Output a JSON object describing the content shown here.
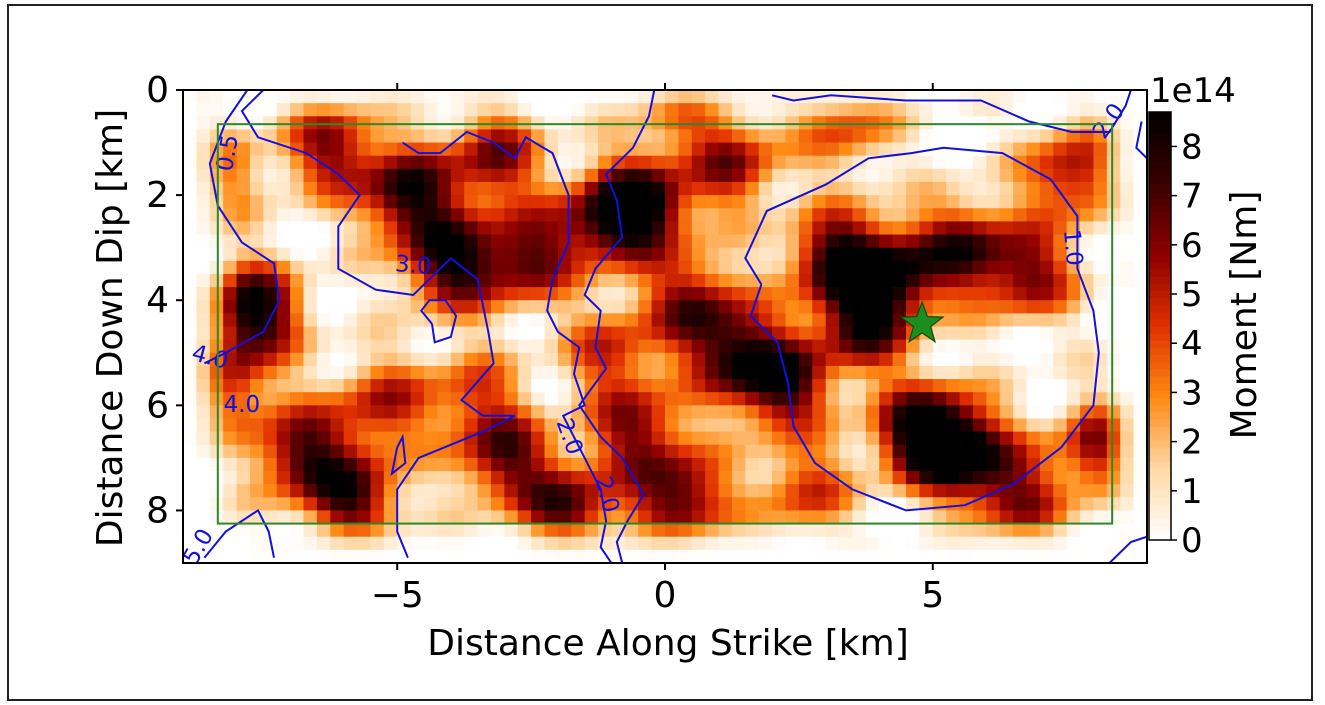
{
  "chart_data": {
    "type": "heatmap",
    "title": "",
    "xlabel": "Distance Along Strike [km]",
    "ylabel": "Distance Down Dip [km]",
    "xlim": [
      -9,
      9
    ],
    "ylim": [
      9,
      0
    ],
    "x_ticks": [
      -5,
      0,
      5
    ],
    "x_tick_labels": [
      "−5",
      "0",
      "5"
    ],
    "y_ticks": [
      0,
      2,
      4,
      6,
      8
    ],
    "y_tick_labels": [
      "0",
      "2",
      "4",
      "6",
      "8"
    ],
    "grid": false,
    "colorbar": {
      "label": "Moment [Nm]",
      "multiplier_label": "1e14",
      "min": 0,
      "max": 8.7,
      "ticks": [
        0,
        1,
        2,
        3,
        4,
        5,
        6,
        7,
        8
      ],
      "tick_labels": [
        "0",
        "1",
        "2",
        "3",
        "4",
        "5",
        "6",
        "7",
        "8"
      ],
      "colormap": "gist_heat_r",
      "colors": [
        "#ffffff",
        "#ffd8a6",
        "#ff8a14",
        "#e03000",
        "#8e0000",
        "#3a0000",
        "#000000"
      ]
    },
    "grid_resolution_km": 0.25,
    "moment_hotspots": [
      {
        "x": -7.7,
        "y": 4.2,
        "value": 9.0
      },
      {
        "x": -6.2,
        "y": 1.1,
        "value": 6.0
      },
      {
        "x": -4.8,
        "y": 2.0,
        "value": 8.0
      },
      {
        "x": -4.0,
        "y": 3.3,
        "value": 8.0
      },
      {
        "x": -3.2,
        "y": 1.3,
        "value": 6.0
      },
      {
        "x": -2.6,
        "y": 3.2,
        "value": 6.5
      },
      {
        "x": -1.2,
        "y": 2.5,
        "value": 6.0
      },
      {
        "x": -0.4,
        "y": 2.2,
        "value": 8.5
      },
      {
        "x": 0.5,
        "y": 4.0,
        "value": 6.0
      },
      {
        "x": 1.3,
        "y": 1.4,
        "value": 5.5
      },
      {
        "x": 1.3,
        "y": 5.0,
        "value": 7.0
      },
      {
        "x": 2.2,
        "y": 5.6,
        "value": 7.5
      },
      {
        "x": 3.2,
        "y": 3.2,
        "value": 8.0
      },
      {
        "x": 3.7,
        "y": 4.5,
        "value": 7.0
      },
      {
        "x": 4.3,
        "y": 3.5,
        "value": 7.0
      },
      {
        "x": 4.8,
        "y": 6.5,
        "value": 9.0
      },
      {
        "x": 5.6,
        "y": 6.9,
        "value": 8.0
      },
      {
        "x": 5.6,
        "y": 3.0,
        "value": 6.5
      },
      {
        "x": 6.8,
        "y": 3.5,
        "value": 6.0
      },
      {
        "x": 7.6,
        "y": 1.6,
        "value": 6.0
      },
      {
        "x": 8.2,
        "y": 6.8,
        "value": 6.5
      },
      {
        "x": 6.6,
        "y": 7.8,
        "value": 5.5
      },
      {
        "x": -6.8,
        "y": 6.9,
        "value": 7.0
      },
      {
        "x": -5.8,
        "y": 7.8,
        "value": 7.0
      },
      {
        "x": -5.3,
        "y": 6.0,
        "value": 5.0
      },
      {
        "x": -3.0,
        "y": 7.0,
        "value": 6.5
      },
      {
        "x": -1.8,
        "y": 8.0,
        "value": 7.0
      },
      {
        "x": -0.5,
        "y": 6.5,
        "value": 6.0
      },
      {
        "x": 0.3,
        "y": 7.8,
        "value": 7.5
      },
      {
        "x": -1.0,
        "y": 5.0,
        "value": 4.5
      },
      {
        "x": -3.6,
        "y": 5.8,
        "value": 4.0
      },
      {
        "x": -8.2,
        "y": 5.6,
        "value": 5.0
      },
      {
        "x": -8.3,
        "y": 1.6,
        "value": 3.5
      },
      {
        "x": 2.6,
        "y": 7.6,
        "value": 4.5
      },
      {
        "x": 3.4,
        "y": 0.7,
        "value": 4.0
      },
      {
        "x": 0.2,
        "y": 0.4,
        "value": 3.0
      }
    ],
    "rupture_contours": [
      {
        "label": "0.5",
        "points": [
          [
            -7.8,
            0.0
          ],
          [
            -8.2,
            0.6
          ],
          [
            -8.5,
            1.4
          ],
          [
            -8.35,
            2.2
          ],
          [
            -7.9,
            2.9
          ],
          [
            -7.3,
            3.3
          ],
          [
            -7.2,
            4.0
          ],
          [
            -7.5,
            4.6
          ],
          [
            -8.2,
            5.0
          ],
          [
            -8.6,
            5.2
          ]
        ]
      },
      {
        "label": "3.0",
        "points": [
          [
            -7.5,
            0.0
          ],
          [
            -7.9,
            0.4
          ],
          [
            -7.6,
            0.9
          ],
          [
            -6.7,
            1.2
          ],
          [
            -6.1,
            1.6
          ],
          [
            -5.7,
            2.0
          ],
          [
            -6.1,
            2.6
          ],
          [
            -6.1,
            3.4
          ],
          [
            -5.4,
            3.8
          ],
          [
            -4.7,
            3.9
          ],
          [
            -4.0,
            3.2
          ],
          [
            -3.5,
            3.6
          ],
          [
            -3.3,
            4.6
          ],
          [
            -3.2,
            5.2
          ],
          [
            -3.8,
            5.9
          ],
          [
            -3.4,
            6.2
          ],
          [
            -2.8,
            6.2
          ],
          [
            -3.4,
            6.5
          ],
          [
            -4.6,
            7.0
          ],
          [
            -5.0,
            7.6
          ],
          [
            -5.0,
            8.4
          ],
          [
            -4.8,
            8.9
          ]
        ]
      },
      {
        "label": "",
        "points": [
          [
            -4.9,
            1.0
          ],
          [
            -4.6,
            1.2
          ],
          [
            -4.2,
            1.2
          ],
          [
            -3.7,
            0.8
          ],
          [
            -3.2,
            1.0
          ],
          [
            -2.8,
            1.3
          ],
          [
            -2.6,
            0.9
          ],
          [
            -2.1,
            1.2
          ],
          [
            -1.8,
            2.0
          ],
          [
            -1.8,
            2.9
          ],
          [
            -2.1,
            3.6
          ],
          [
            -2.2,
            4.2
          ],
          [
            -2.0,
            4.6
          ],
          [
            -1.6,
            4.9
          ],
          [
            -1.7,
            5.4
          ],
          [
            -1.5,
            6.0
          ],
          [
            -1.9,
            6.2
          ],
          [
            -1.6,
            6.8
          ],
          [
            -1.2,
            7.6
          ],
          [
            -1.1,
            8.2
          ],
          [
            -1.2,
            8.7
          ],
          [
            -1.0,
            9.0
          ]
        ]
      },
      {
        "label": "2.0",
        "points": [
          [
            -0.2,
            0.0
          ],
          [
            -0.3,
            0.5
          ],
          [
            -0.6,
            1.1
          ],
          [
            -1.1,
            1.6
          ],
          [
            -0.9,
            2.1
          ],
          [
            -0.8,
            2.8
          ],
          [
            -1.3,
            3.4
          ],
          [
            -1.5,
            3.9
          ],
          [
            -1.2,
            4.2
          ],
          [
            -1.3,
            4.9
          ],
          [
            -1.1,
            5.3
          ],
          [
            -1.6,
            6.0
          ],
          [
            -1.2,
            6.6
          ],
          [
            -0.8,
            7.0
          ],
          [
            -0.4,
            7.7
          ],
          [
            -0.7,
            8.2
          ],
          [
            -0.9,
            8.6
          ],
          [
            -0.8,
            9.0
          ]
        ]
      },
      {
        "label": "1.0",
        "points": [
          [
            1.8,
            3.7
          ],
          [
            1.5,
            3.2
          ],
          [
            1.9,
            2.3
          ],
          [
            3.0,
            1.8
          ],
          [
            3.8,
            1.3
          ],
          [
            4.6,
            1.2
          ],
          [
            5.2,
            1.1
          ],
          [
            6.3,
            1.2
          ],
          [
            7.2,
            1.7
          ],
          [
            7.7,
            2.4
          ],
          [
            7.7,
            3.4
          ],
          [
            8.0,
            4.2
          ],
          [
            8.1,
            5.0
          ],
          [
            8.0,
            6.0
          ],
          [
            7.4,
            6.8
          ],
          [
            6.5,
            7.5
          ],
          [
            5.6,
            7.9
          ],
          [
            4.5,
            8.0
          ],
          [
            3.5,
            7.6
          ],
          [
            2.8,
            7.1
          ],
          [
            2.4,
            6.4
          ],
          [
            2.3,
            5.6
          ],
          [
            2.1,
            4.8
          ],
          [
            1.6,
            4.3
          ],
          [
            1.8,
            3.7
          ]
        ]
      },
      {
        "label": "2.0",
        "points": [
          [
            2.0,
            0.1
          ],
          [
            2.4,
            0.2
          ],
          [
            3.1,
            0.1
          ],
          [
            4.5,
            0.2
          ],
          [
            5.9,
            0.2
          ],
          [
            6.8,
            0.6
          ],
          [
            7.6,
            0.8
          ],
          [
            8.3,
            0.8
          ],
          [
            8.6,
            0.3
          ],
          [
            8.7,
            0.0
          ]
        ]
      },
      {
        "label": "5.0",
        "points": [
          [
            -8.6,
            8.9
          ],
          [
            -8.2,
            8.4
          ],
          [
            -7.6,
            8.0
          ],
          [
            -7.4,
            8.4
          ],
          [
            -7.3,
            8.9
          ]
        ]
      },
      {
        "label": "",
        "points": [
          [
            8.3,
            9.0
          ],
          [
            8.7,
            8.6
          ],
          [
            9.0,
            8.5
          ]
        ]
      },
      {
        "label": "",
        "points": [
          [
            9.0,
            1.3
          ],
          [
            8.8,
            1.1
          ],
          [
            8.9,
            0.6
          ]
        ]
      },
      {
        "label": "",
        "points": [
          [
            -4.35,
            4.45
          ],
          [
            -4.55,
            4.2
          ],
          [
            -4.4,
            4.0
          ],
          [
            -4.1,
            4.0
          ],
          [
            -3.9,
            4.3
          ],
          [
            -4.0,
            4.7
          ],
          [
            -4.3,
            4.8
          ],
          [
            -4.35,
            4.45
          ]
        ]
      },
      {
        "label": "",
        "points": [
          [
            -5.0,
            6.8
          ],
          [
            -4.9,
            6.6
          ],
          [
            -4.85,
            7.1
          ],
          [
            -5.1,
            7.3
          ],
          [
            -5.0,
            6.8
          ]
        ]
      }
    ],
    "contour_labels": [
      {
        "text": "0.5",
        "x": -8.15,
        "y": 1.2,
        "angle": -80
      },
      {
        "text": "3.0",
        "x": -4.7,
        "y": 3.35,
        "angle": 5
      },
      {
        "text": "4.0",
        "x": -8.5,
        "y": 5.1,
        "angle": 15
      },
      {
        "text": "4.0",
        "x": -7.9,
        "y": 6.0,
        "angle": 0
      },
      {
        "text": "2.0",
        "x": -1.8,
        "y": 6.6,
        "angle": 70
      },
      {
        "text": "2.0",
        "x": -1.1,
        "y": 7.7,
        "angle": 75
      },
      {
        "text": "1.0",
        "x": 7.6,
        "y": 3.0,
        "angle": 85
      },
      {
        "text": "2.0",
        "x": 8.3,
        "y": 0.6,
        "angle": -55
      },
      {
        "text": "5.0",
        "x": -8.7,
        "y": 8.7,
        "angle": -60
      }
    ],
    "fault_box": {
      "x": [
        -8.35,
        8.35
      ],
      "y": [
        0.65,
        8.25
      ]
    },
    "hypocenter": {
      "x": 4.8,
      "y": 4.45,
      "marker": "star",
      "color": "#1e8c1e"
    },
    "contour_color": "#1010e0",
    "fault_box_color": "#2a8a2a"
  }
}
